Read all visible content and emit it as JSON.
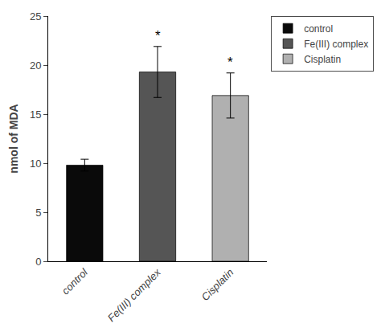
{
  "chart_data": {
    "type": "bar",
    "categories": [
      "control",
      "Fe(III) complex",
      "Cisplatin"
    ],
    "values": [
      9.8,
      19.3,
      16.9
    ],
    "errors": [
      0.6,
      2.6,
      2.3
    ],
    "colors": [
      "#0a0a0a",
      "#555555",
      "#b0b0b0"
    ],
    "ylabel": "nmol of MDA",
    "ylim": [
      0,
      25
    ],
    "yticks": [
      0,
      5,
      10,
      15,
      20,
      25
    ],
    "grid": false,
    "legend": "upper right",
    "annotations": [
      {
        "x": "Fe(III) complex",
        "text": "*"
      },
      {
        "x": "Cisplatin",
        "text": "*"
      }
    ]
  }
}
